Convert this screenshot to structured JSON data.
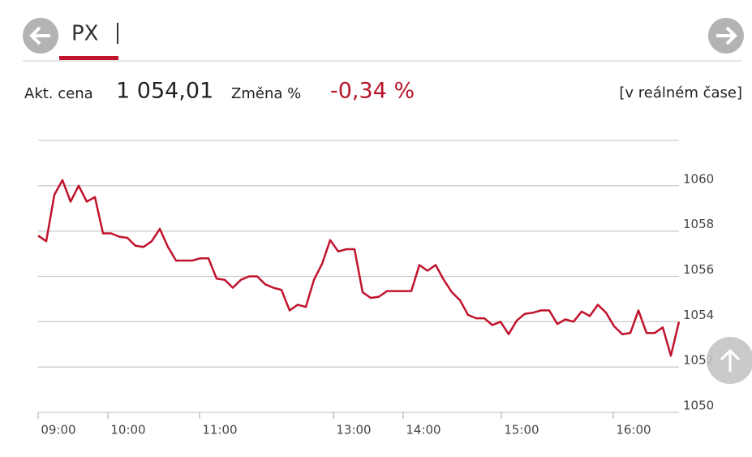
{
  "header": {
    "tab": "PX",
    "price_label": "Akt. cena",
    "price": "1 054,01",
    "change_label": "Změna %",
    "change": "-0,34 %",
    "realtime": "[v reálném čase]"
  },
  "chart_data": {
    "type": "line",
    "color": "#c0132c",
    "values": [
      1057.8,
      1057.55,
      1059.6,
      1060.25,
      1059.3,
      1060.0,
      1059.3,
      1059.5,
      1057.9,
      1057.9,
      1057.75,
      1057.7,
      1057.35,
      1057.3,
      1057.55,
      1058.1,
      1057.3,
      1056.7,
      1056.7,
      1056.7,
      1056.8,
      1056.8,
      1055.9,
      1055.85,
      1055.5,
      1055.85,
      1056.0,
      1056.0,
      1055.65,
      1055.5,
      1055.4,
      1054.5,
      1054.75,
      1054.65,
      1055.85,
      1056.55,
      1057.6,
      1057.1,
      1057.2,
      1057.2,
      1055.3,
      1055.05,
      1055.1,
      1055.35,
      1055.35,
      1055.35,
      1055.35,
      1056.5,
      1056.25,
      1056.5,
      1055.85,
      1055.3,
      1054.95,
      1054.3,
      1054.15,
      1054.15,
      1053.85,
      1054.0,
      1053.45,
      1054.05,
      1054.35,
      1054.4,
      1054.5,
      1054.5,
      1053.9,
      1054.1,
      1054.0,
      1054.45,
      1054.25,
      1054.75,
      1054.4,
      1053.8,
      1053.45,
      1053.5,
      1054.5,
      1053.5,
      1053.5,
      1053.75,
      1052.5,
      1054.0
    ],
    "xlim": [
      0,
      79
    ],
    "xticks": [
      {
        "value": 0,
        "label": "09:00"
      },
      {
        "value": 8.6,
        "label": "10:00"
      },
      {
        "value": 19.9,
        "label": "11:00"
      },
      {
        "value": 36.4,
        "label": "13:00"
      },
      {
        "value": 45,
        "label": "14:00"
      },
      {
        "value": 57.1,
        "label": "15:00"
      },
      {
        "value": 70.9,
        "label": "16:00"
      }
    ],
    "ylim": [
      1050,
      1062
    ],
    "yticks": [
      1050,
      1052,
      1054,
      1056,
      1058,
      1060
    ],
    "grid": true
  }
}
